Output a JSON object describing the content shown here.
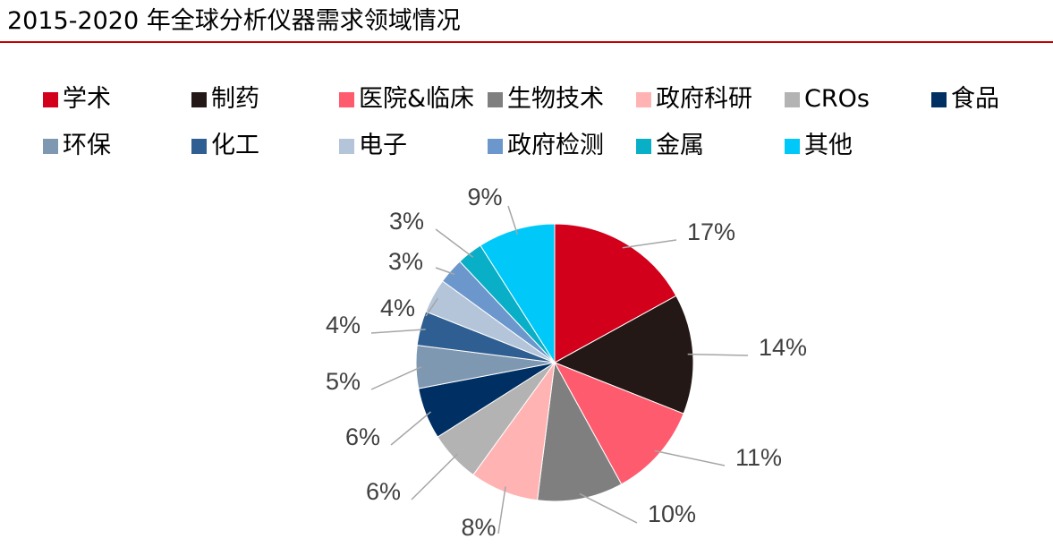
{
  "title": "2015-2020 年全球分析仪器需求领域情况",
  "chart_data": {
    "type": "pie",
    "title": "2015-2020 年全球分析仪器需求领域情况",
    "legend_position": "top",
    "slices": [
      {
        "label": "学术",
        "value": 17,
        "display": "17%",
        "color": "#d2001a"
      },
      {
        "label": "制药",
        "value": 14,
        "display": "14%",
        "color": "#231815"
      },
      {
        "label": "医院&临床",
        "value": 11,
        "display": "11%",
        "color": "#ff5b6e"
      },
      {
        "label": "生物技术",
        "value": 10,
        "display": "10%",
        "color": "#7f7f7f"
      },
      {
        "label": "政府科研",
        "value": 8,
        "display": "8%",
        "color": "#ffb3b3"
      },
      {
        "label": "CROs",
        "value": 6,
        "display": "6%",
        "color": "#b3b3b3"
      },
      {
        "label": "食品",
        "value": 6,
        "display": "6%",
        "color": "#002f63"
      },
      {
        "label": "环保",
        "value": 5,
        "display": "5%",
        "color": "#7f98b1"
      },
      {
        "label": "化工",
        "value": 4,
        "display": "4%",
        "color": "#2f5e92"
      },
      {
        "label": "电子",
        "value": 4,
        "display": "4%",
        "color": "#b4c5d9"
      },
      {
        "label": "政府检测",
        "value": 3,
        "display": "3%",
        "color": "#6b97cc"
      },
      {
        "label": "金属",
        "value": 3,
        "display": "3%",
        "color": "#08afc6"
      },
      {
        "label": "其他",
        "value": 9,
        "display": "9%",
        "color": "#00c8f8"
      }
    ]
  }
}
